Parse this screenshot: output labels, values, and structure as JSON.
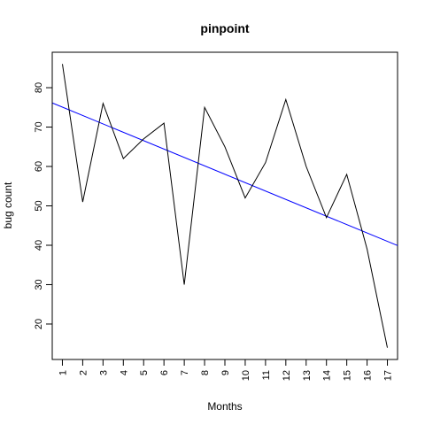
{
  "chart_data": {
    "type": "line",
    "title": "pinpoint",
    "xlabel": "Months",
    "ylabel": "bug count",
    "x": [
      1,
      2,
      3,
      4,
      5,
      6,
      7,
      8,
      9,
      10,
      11,
      12,
      13,
      14,
      15,
      16,
      17
    ],
    "xticks": [
      "1",
      "2",
      "3",
      "4",
      "5",
      "6",
      "7",
      "8",
      "9",
      "10",
      "11",
      "12",
      "13",
      "14",
      "15",
      "16",
      "17"
    ],
    "yticks": [
      "20",
      "30",
      "40",
      "50",
      "60",
      "70",
      "80"
    ],
    "xlim": [
      0.5,
      17.5
    ],
    "ylim": [
      11,
      89
    ],
    "grid": false,
    "series": [
      {
        "values": [
          86,
          51,
          76,
          62,
          67,
          71,
          30,
          75,
          65,
          52,
          61,
          77,
          60,
          47,
          58,
          39,
          14
        ],
        "color": "#000000"
      }
    ],
    "trendline": {
      "intercept": 77.2,
      "slope": -2.13,
      "color": "#0000ff"
    }
  }
}
